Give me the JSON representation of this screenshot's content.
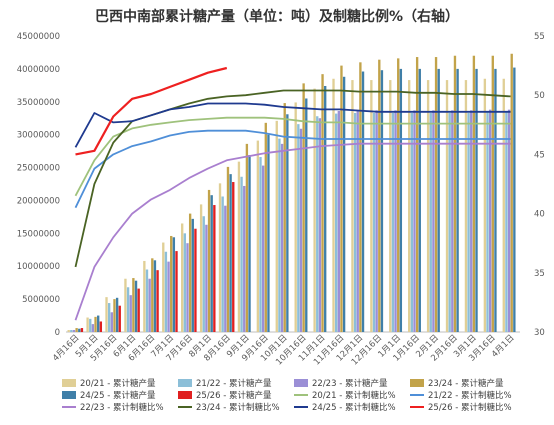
{
  "chart_data": {
    "type": "bar",
    "title": "巴西中南部累计糖产量（单位：吨）及制糖比例%（右轴）",
    "categories": [
      "4月16日",
      "5月1日",
      "5月16日",
      "6月1日",
      "6月16日",
      "7月1日",
      "7月16日",
      "8月1日",
      "8月16日",
      "9月1日",
      "9月16日",
      "10月1日",
      "10月16日",
      "11月1日",
      "11月16日",
      "12月1日",
      "12月16日",
      "1月1日",
      "1月16日",
      "2月1日",
      "2月16日",
      "3月1日",
      "3月16日",
      "4月1日"
    ],
    "x_tick_labels": [
      "4月16日",
      "5月1日",
      "5月16日",
      "6月1日",
      "6月16日",
      "7月1日",
      "7月16日",
      "8月1日",
      "8月16日",
      "9月1日",
      "9月16日",
      "10月1日",
      "10月16日",
      "11月1日",
      "11月16日",
      "12月1日",
      "12月16日",
      "1月1日",
      "1月16日",
      "2月1日",
      "2月16日",
      "3月1日",
      "3月16日",
      "4月1日"
    ],
    "y_left": {
      "min": 0,
      "max": 45000000,
      "ticks": [
        "0",
        "5000000",
        "10000000",
        "15000000",
        "20000000",
        "25000000",
        "30000000",
        "35000000",
        "40000000",
        "45000000"
      ]
    },
    "y_right": {
      "min": 30,
      "max": 55,
      "ticks": [
        "30",
        "35",
        "40",
        "45",
        "50",
        "55"
      ]
    },
    "grid": false,
    "legend_position": "bottom",
    "bar_series": [
      {
        "name": "20/21 - 累计糖产量",
        "color": "#e0cf96",
        "values": [
          0.3,
          2.2,
          5.3,
          8.1,
          10.8,
          13.6,
          16.5,
          19.4,
          22.6,
          25.9,
          29.1,
          32.1,
          34.9,
          37.0,
          38.5,
          38.3,
          38.3,
          38.3,
          38.3,
          38.3,
          38.3,
          38.3,
          38.5,
          38.5
        ]
      },
      {
        "name": "21/22 - 累计糖产量",
        "color": "#8cbfd8",
        "values": [
          0.3,
          2.0,
          4.4,
          6.8,
          9.5,
          12.2,
          15.0,
          17.6,
          20.6,
          23.6,
          26.6,
          29.4,
          31.6,
          32.8,
          33.2,
          33.3,
          33.3,
          33.3,
          33.3,
          33.3,
          33.3,
          33.3,
          33.4,
          33.4
        ]
      },
      {
        "name": "22/23 - 累计糖产量",
        "color": "#9b8fd6",
        "values": [
          0.3,
          1.2,
          3.0,
          5.6,
          8.1,
          10.7,
          13.5,
          16.3,
          19.2,
          22.2,
          25.3,
          28.6,
          30.9,
          32.5,
          33.6,
          33.7,
          33.7,
          33.7,
          33.7,
          33.7,
          33.7,
          33.7,
          33.8,
          33.8
        ]
      },
      {
        "name": "23/24 - 累计糖产量",
        "color": "#c2a34a",
        "values": [
          0.6,
          2.3,
          5.0,
          8.2,
          11.2,
          14.6,
          18.0,
          21.6,
          25.1,
          28.6,
          31.8,
          34.8,
          37.8,
          39.2,
          40.5,
          41.0,
          41.4,
          41.6,
          41.8,
          41.8,
          42.0,
          42.0,
          42.0,
          42.3
        ]
      },
      {
        "name": "24/25 - 累计糖产量",
        "color": "#3f7fa8",
        "values": [
          0.5,
          2.5,
          5.2,
          7.8,
          10.9,
          14.4,
          17.2,
          20.8,
          24.0,
          26.9,
          30.0,
          33.1,
          35.5,
          37.4,
          38.8,
          39.6,
          39.8,
          40.0,
          40.0,
          40.0,
          40.0,
          40.0,
          40.0,
          40.2
        ]
      },
      {
        "name": "25/26 - 累计糖产量",
        "color": "#e02020",
        "values": [
          0.6,
          1.6,
          4.0,
          6.6,
          9.4,
          12.3,
          15.7,
          19.3,
          22.8
        ]
      }
    ],
    "line_series": [
      {
        "name": "20/21 - 累计制糖比%",
        "color": "#9fc27c",
        "values": [
          41.5,
          44.5,
          46.5,
          47.2,
          47.5,
          47.7,
          47.9,
          48.0,
          48.1,
          48.1,
          48.1,
          48.0,
          47.8,
          47.7,
          47.7,
          47.6,
          47.6,
          47.6,
          47.6,
          47.6,
          47.6,
          47.6,
          47.6,
          47.6
        ]
      },
      {
        "name": "21/22 - 累计制糖比%",
        "color": "#4f8fd8",
        "values": [
          40.5,
          43.8,
          45.0,
          45.7,
          46.1,
          46.6,
          46.9,
          47.0,
          47.0,
          47.0,
          46.8,
          46.5,
          46.4,
          46.3,
          46.3,
          46.3,
          46.3,
          46.3,
          46.3,
          46.3,
          46.3,
          46.3,
          46.3,
          46.3
        ]
      },
      {
        "name": "22/23 - 累计制糖比%",
        "color": "#a97fcf",
        "values": null
      },
      {
        "name": "23/24 - 累计制糖比%",
        "color": "#4a6324",
        "values": [
          35.5,
          42.5,
          46.0,
          47.8,
          48.3,
          48.8,
          49.3,
          49.7,
          49.9,
          50.0,
          50.2,
          50.4,
          50.4,
          50.4,
          50.4,
          50.3,
          50.3,
          50.3,
          50.2,
          50.2,
          50.1,
          50.1,
          50.0,
          49.9
        ]
      },
      {
        "name": "24/25 - 累计制糖比%",
        "color": "#1f3a8f",
        "values": [
          45.6,
          48.5,
          47.7,
          47.8,
          48.3,
          48.8,
          49.0,
          49.3,
          49.3,
          49.3,
          49.2,
          49.0,
          48.9,
          48.8,
          48.8,
          48.7,
          48.6,
          48.6,
          48.6,
          48.6,
          48.6,
          48.6,
          48.6,
          48.6
        ]
      },
      {
        "name": "25/26 - 累计制糖比%",
        "color": "#ee2020",
        "values": [
          45.0,
          45.3,
          48.2,
          49.7,
          50.1,
          50.7,
          51.3,
          51.9,
          52.3
        ]
      }
    ],
    "line_22_23_values": [
      31.0,
      35.5,
      38.0,
      40.0,
      41.2,
      42.0,
      43.0,
      43.8,
      44.5,
      44.8,
      45.1,
      45.3,
      45.5,
      45.7,
      45.8,
      45.9,
      45.9,
      45.9,
      45.9,
      45.9,
      45.9,
      45.9,
      45.9,
      45.9
    ]
  }
}
